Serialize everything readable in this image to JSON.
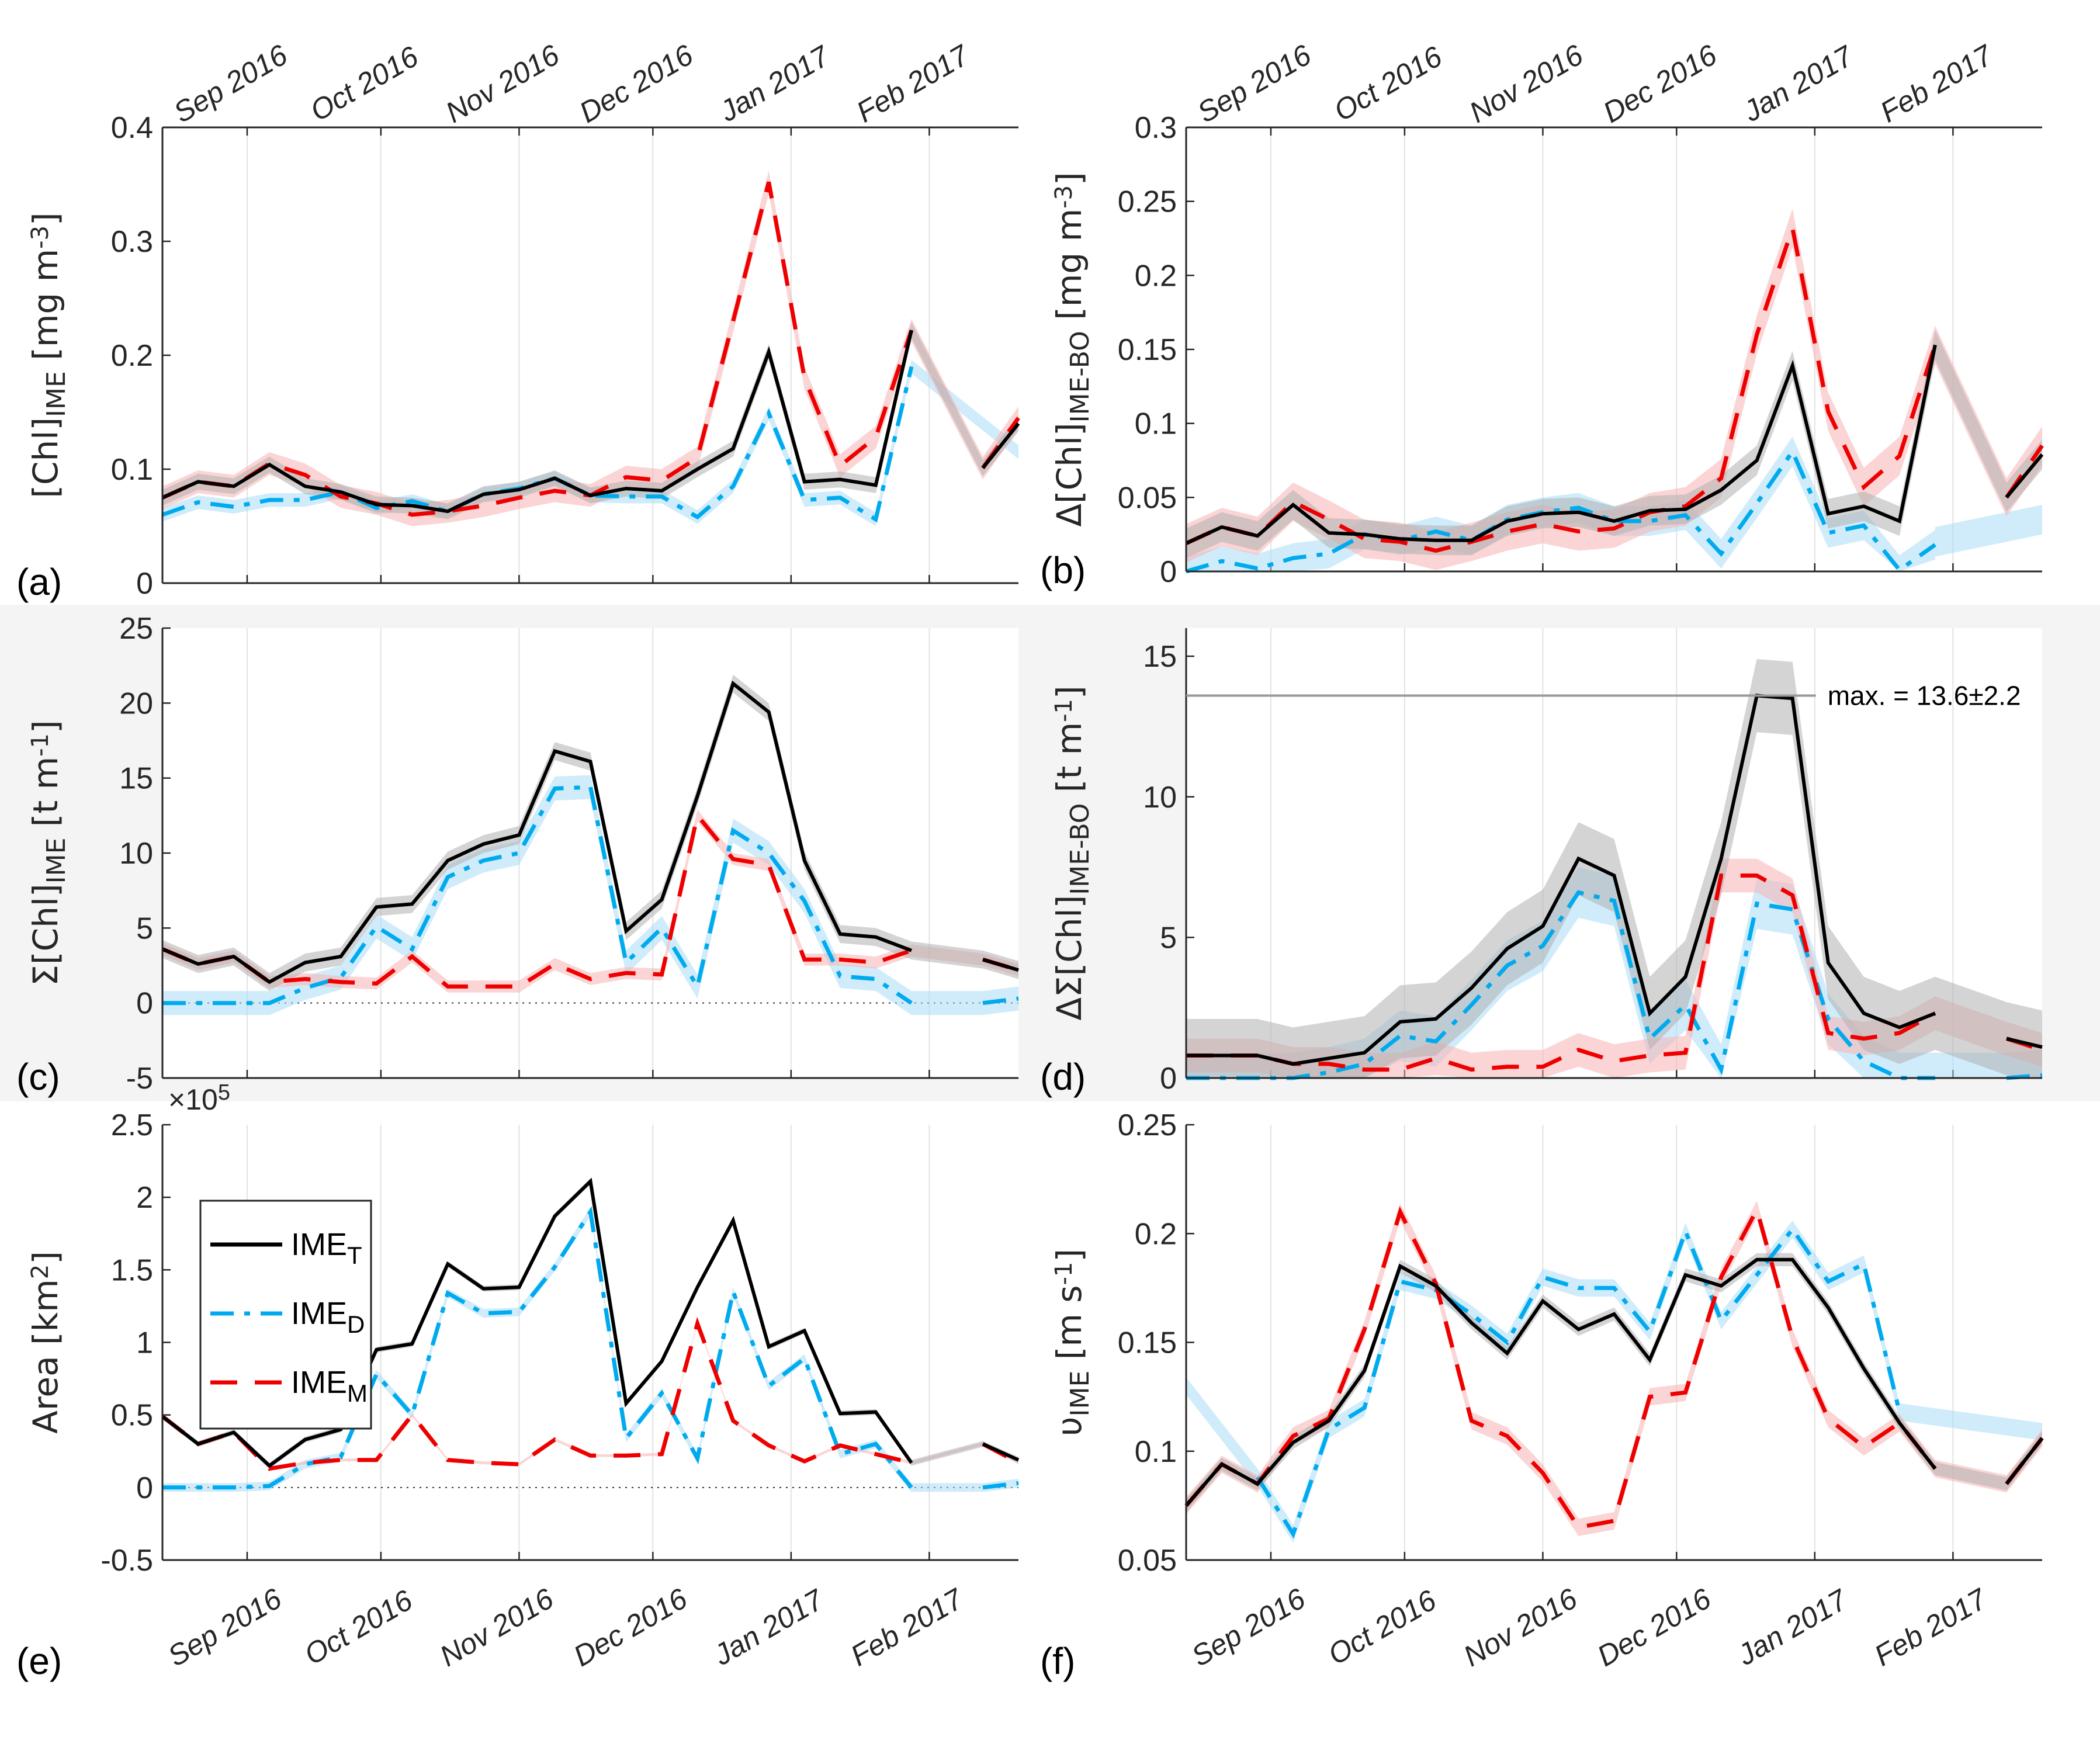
{
  "figure": {
    "x_dates": [
      "2016-08-13",
      "2016-08-21",
      "2016-08-29",
      "2016-09-06",
      "2016-09-14",
      "2016-09-22",
      "2016-09-30",
      "2016-10-08",
      "2016-10-16",
      "2016-10-24",
      "2016-11-01",
      "2016-11-09",
      "2016-11-17",
      "2016-11-25",
      "2016-12-03",
      "2016-12-11",
      "2016-12-19",
      "2016-12-27",
      "2017-01-04",
      "2017-01-12",
      "2017-01-20",
      "2017-01-28",
      "2017-02-05",
      "2017-02-13",
      "2017-02-21"
    ],
    "month_ticks": [
      {
        "date": "2016-09-01",
        "label": "Sep 2016"
      },
      {
        "date": "2016-10-01",
        "label": "Oct 2016"
      },
      {
        "date": "2016-11-01",
        "label": "Nov 2016"
      },
      {
        "date": "2016-12-01",
        "label": "Dec 2016"
      },
      {
        "date": "2017-01-01",
        "label": "Jan 2017"
      },
      {
        "date": "2017-02-01",
        "label": "Feb 2017"
      }
    ],
    "xlim": [
      "2016-08-13",
      "2017-02-21"
    ],
    "colors": {
      "IME_T": "#000000",
      "IME_D": "#00aaee",
      "IME_M": "#ee0000",
      "shade_T": "#b0b0b0",
      "shade_D": "#aadcf5",
      "shade_M": "#f7b3b3",
      "band": "#f4f4f4"
    },
    "legend": {
      "placement": "upper-left of panel (e)",
      "entries": [
        {
          "key": "IME_T",
          "base": "IME",
          "sub": "T",
          "style": "solid"
        },
        {
          "key": "IME_D",
          "base": "IME",
          "sub": "D",
          "style": "dash-dot"
        },
        {
          "key": "IME_M",
          "base": "IME",
          "sub": "M",
          "style": "dashed"
        }
      ]
    }
  },
  "chart_data": [
    {
      "id": "a",
      "panel_label": "(a)",
      "type": "line",
      "ylabel": {
        "pre": "[Chl]",
        "sub": "IME",
        "post": " [mg m",
        "sup": "-3",
        "end": "]"
      },
      "ylim": [
        0,
        0.4
      ],
      "yticks": [
        0,
        0.1,
        0.2,
        0.3,
        0.4
      ],
      "ytick_labels": [
        "0",
        "0.1",
        "0.2",
        "0.3",
        "0.4"
      ],
      "grid": "vertical",
      "top_dates": true,
      "bottom_dates": false,
      "band": false,
      "zero_line": false,
      "series": [
        {
          "name": "IME_T",
          "values": [
            0.075,
            0.089,
            0.085,
            0.104,
            0.085,
            0.08,
            0.069,
            0.068,
            0.063,
            0.078,
            0.082,
            0.092,
            0.077,
            0.083,
            0.081,
            0.1,
            0.118,
            0.203,
            0.089,
            0.091,
            0.086,
            0.222,
            null,
            0.101,
            0.14
          ],
          "err": 0.007
        },
        {
          "name": "IME_D",
          "values": [
            0.06,
            0.071,
            0.067,
            0.073,
            0.073,
            0.08,
            0.066,
            0.072,
            0.063,
            0.078,
            0.083,
            0.092,
            0.077,
            0.076,
            0.076,
            0.058,
            0.085,
            0.149,
            0.073,
            0.075,
            0.056,
            0.19,
            null,
            null,
            null
          ],
          "err": 0.006
        },
        {
          "name": "IME_M",
          "values": [
            0.075,
            0.089,
            0.085,
            0.105,
            0.095,
            0.076,
            0.07,
            0.06,
            0.063,
            0.068,
            0.075,
            0.081,
            0.077,
            0.093,
            0.09,
            0.11,
            0.23,
            0.352,
            0.18,
            0.103,
            0.128,
            0.222,
            null,
            0.101,
            0.145
          ],
          "err": 0.01
        }
      ],
      "shade_only": {
        "IME_D": [
          [
            21,
            0.19
          ],
          [
            24,
            0.115
          ]
        ]
      }
    },
    {
      "id": "b",
      "panel_label": "(b)",
      "type": "line",
      "ylabel": {
        "pre": "Δ[Chl]",
        "sub": "IME-BO",
        "post": " [mg m",
        "sup": "-3",
        "end": "]"
      },
      "ylim": [
        0,
        0.3
      ],
      "yticks": [
        0,
        0.05,
        0.1,
        0.15,
        0.2,
        0.25,
        0.3
      ],
      "ytick_labels": [
        "0",
        "0.05",
        "0.1",
        "0.15",
        "0.2",
        "0.25",
        "0.3"
      ],
      "grid": "vertical",
      "top_dates": true,
      "bottom_dates": false,
      "band": false,
      "zero_line": true,
      "series": [
        {
          "name": "IME_T",
          "values": [
            0.019,
            0.03,
            0.024,
            0.045,
            0.026,
            0.025,
            0.022,
            0.021,
            0.021,
            0.034,
            0.039,
            0.04,
            0.034,
            0.041,
            0.042,
            0.055,
            0.075,
            0.139,
            0.039,
            0.044,
            0.034,
            0.153,
            null,
            0.05,
            0.079
          ],
          "err": 0.01
        },
        {
          "name": "IME_D",
          "values": [
            0.0,
            0.007,
            0.002,
            0.009,
            0.012,
            0.025,
            0.021,
            0.027,
            0.021,
            0.035,
            0.04,
            0.043,
            0.034,
            0.034,
            0.038,
            0.012,
            0.046,
            0.081,
            0.026,
            0.031,
            0.001,
            0.018,
            null,
            null,
            null
          ],
          "err": 0.01
        },
        {
          "name": "IME_M",
          "values": [
            0.019,
            0.03,
            0.024,
            0.047,
            0.035,
            0.022,
            0.02,
            0.014,
            0.02,
            0.027,
            0.032,
            0.027,
            0.029,
            0.04,
            0.044,
            0.063,
            0.16,
            0.232,
            0.108,
            0.057,
            0.078,
            0.153,
            null,
            0.05,
            0.085
          ],
          "err": 0.013
        }
      ],
      "shade_only": {
        "IME_D": [
          [
            21,
            0.02
          ],
          [
            24,
            0.035
          ]
        ]
      }
    },
    {
      "id": "c",
      "panel_label": "(c)",
      "type": "line",
      "ylabel": {
        "pre": "Σ[Chl]",
        "sub": "IME",
        "post": " [t m",
        "sup": "-1",
        "end": "]"
      },
      "ylim": [
        -5,
        25
      ],
      "yticks": [
        -5,
        0,
        5,
        10,
        15,
        20,
        25
      ],
      "ytick_labels": [
        "-5",
        "0",
        "5",
        "10",
        "15",
        "20",
        "25"
      ],
      "grid": "vertical",
      "top_dates": false,
      "bottom_dates": false,
      "band": true,
      "zero_line": true,
      "series": [
        {
          "name": "IME_T",
          "values": [
            3.6,
            2.6,
            3.1,
            1.4,
            2.7,
            3.1,
            6.4,
            6.6,
            9.5,
            10.6,
            11.2,
            16.8,
            16.1,
            4.8,
            6.9,
            13.8,
            21.3,
            19.4,
            9.5,
            4.6,
            4.4,
            3.5,
            null,
            2.9,
            2.2
          ],
          "err": 0.6
        },
        {
          "name": "IME_D",
          "values": [
            0.0,
            0.0,
            0.0,
            0.0,
            1.0,
            1.7,
            5.1,
            3.6,
            8.4,
            9.5,
            10.0,
            14.3,
            14.4,
            2.7,
            5.0,
            1.1,
            11.5,
            10.0,
            6.8,
            1.8,
            1.6,
            0.0,
            null,
            0.0,
            0.3
          ],
          "err": 0.8
        },
        {
          "name": "IME_M",
          "values": [
            3.6,
            2.6,
            3.1,
            1.4,
            1.6,
            1.4,
            1.3,
            3.1,
            1.1,
            1.1,
            1.1,
            2.6,
            1.6,
            2.0,
            1.9,
            12.5,
            9.6,
            9.2,
            2.9,
            2.9,
            2.7,
            3.5,
            null,
            2.9,
            2.2
          ],
          "err": 0.4
        }
      ]
    },
    {
      "id": "d",
      "panel_label": "(d)",
      "type": "line",
      "ylabel": {
        "pre": "ΔΣ[Chl]",
        "sub": "IME-BO",
        "post": " [t m",
        "sup": "-1",
        "end": "]"
      },
      "ylim": [
        0,
        16
      ],
      "yticks": [
        0,
        5,
        10,
        15
      ],
      "ytick_labels": [
        "0",
        "5",
        "10",
        "15"
      ],
      "grid": "vertical",
      "top_dates": false,
      "bottom_dates": false,
      "band": true,
      "zero_line": true,
      "annotation": {
        "text": "max. = 13.6±2.2",
        "value": 13.6
      },
      "series": [
        {
          "name": "IME_T",
          "values": [
            0.8,
            0.8,
            0.8,
            0.5,
            0.7,
            0.9,
            2.0,
            2.1,
            3.2,
            4.6,
            5.4,
            7.8,
            7.2,
            2.3,
            3.6,
            7.8,
            13.6,
            13.5,
            4.1,
            2.3,
            1.8,
            2.3,
            null,
            1.4,
            1.1
          ],
          "err": 1.3
        },
        {
          "name": "IME_D",
          "values": [
            0.0,
            0.0,
            0.0,
            0.0,
            0.2,
            0.5,
            1.5,
            1.3,
            2.6,
            4.0,
            4.7,
            6.6,
            6.3,
            1.4,
            2.6,
            0.3,
            6.2,
            6.0,
            2.1,
            0.6,
            0.0,
            0.0,
            null,
            0.0,
            0.1
          ],
          "err": 0.9
        },
        {
          "name": "IME_M",
          "values": [
            0.8,
            0.8,
            0.8,
            0.5,
            0.5,
            0.3,
            0.3,
            0.7,
            0.3,
            0.4,
            0.4,
            1.0,
            0.6,
            0.8,
            0.9,
            7.2,
            7.2,
            6.5,
            1.6,
            1.4,
            1.6,
            2.3,
            null,
            1.4,
            1.0
          ],
          "err": 0.6
        }
      ]
    },
    {
      "id": "e",
      "panel_label": "(e)",
      "type": "line",
      "ylabel": {
        "pre": "Area [km",
        "sub": "",
        "post": "",
        "sup": "2",
        "end": "]"
      },
      "ylim": [
        -0.5,
        2.5
      ],
      "yticks": [
        -0.5,
        0,
        0.5,
        1,
        1.5,
        2,
        2.5
      ],
      "ytick_labels": [
        "-0.5",
        "0",
        "0.5",
        "1",
        "1.5",
        "2",
        "2.5"
      ],
      "y_multiplier": {
        "base": "×10",
        "exp": "5"
      },
      "grid": "vertical",
      "top_dates": false,
      "bottom_dates": true,
      "band": false,
      "zero_line": true,
      "series": [
        {
          "name": "IME_T",
          "values": [
            0.49,
            0.3,
            0.38,
            0.15,
            0.33,
            0.4,
            0.95,
            0.99,
            1.54,
            1.37,
            1.38,
            1.87,
            2.11,
            0.58,
            0.87,
            1.38,
            1.84,
            0.97,
            1.08,
            0.51,
            0.52,
            0.17,
            null,
            0.3,
            0.19
          ],
          "err": 0.02
        },
        {
          "name": "IME_D",
          "values": [
            0.0,
            0.0,
            0.0,
            0.01,
            0.16,
            0.21,
            0.78,
            0.5,
            1.34,
            1.2,
            1.21,
            1.52,
            1.9,
            0.34,
            0.65,
            0.2,
            1.35,
            0.7,
            0.89,
            0.23,
            0.3,
            0.0,
            null,
            0.0,
            0.03
          ],
          "err": 0.03
        },
        {
          "name": "IME_M",
          "values": [
            0.49,
            0.3,
            0.38,
            0.13,
            0.17,
            0.19,
            0.19,
            0.5,
            0.19,
            0.17,
            0.16,
            0.33,
            0.22,
            0.22,
            0.23,
            1.13,
            0.46,
            0.29,
            0.18,
            0.29,
            0.23,
            0.17,
            null,
            0.3,
            0.17
          ],
          "err": 0.01
        }
      ]
    },
    {
      "id": "f",
      "panel_label": "(f)",
      "type": "line",
      "ylabel": {
        "pre": "υ",
        "sub": "IME",
        "post": " [m s",
        "sup": "-1",
        "end": "]"
      },
      "ylim": [
        0.05,
        0.25
      ],
      "yticks": [
        0.05,
        0.1,
        0.15,
        0.2,
        0.25
      ],
      "ytick_labels": [
        "0.05",
        "0.1",
        "0.15",
        "0.2",
        "0.25"
      ],
      "grid": "vertical",
      "top_dates": false,
      "bottom_dates": true,
      "band": false,
      "zero_line": false,
      "series": [
        {
          "name": "IME_T",
          "values": [
            0.075,
            0.094,
            0.085,
            0.104,
            0.114,
            0.137,
            0.185,
            0.176,
            0.159,
            0.145,
            0.169,
            0.156,
            0.163,
            0.142,
            0.181,
            0.176,
            0.188,
            0.188,
            0.166,
            0.138,
            0.113,
            0.092,
            null,
            0.085,
            0.106
          ],
          "err": 0.003
        },
        {
          "name": "IME_D",
          "values": [
            0.13,
            null,
            0.088,
            0.062,
            0.11,
            0.12,
            0.178,
            0.174,
            0.163,
            0.15,
            0.18,
            0.175,
            0.175,
            0.155,
            0.201,
            0.16,
            0.181,
            0.202,
            0.178,
            0.186,
            0.118,
            null,
            null,
            null,
            0.109
          ],
          "err": 0.004
        },
        {
          "name": "IME_M",
          "values": [
            0.075,
            0.094,
            0.085,
            0.107,
            0.115,
            0.156,
            0.21,
            0.177,
            0.114,
            0.107,
            0.09,
            0.065,
            0.068,
            0.125,
            0.127,
            0.18,
            0.211,
            0.152,
            0.115,
            0.102,
            0.113,
            0.092,
            null,
            0.085,
            0.106
          ],
          "err": 0.004
        }
      ]
    }
  ]
}
